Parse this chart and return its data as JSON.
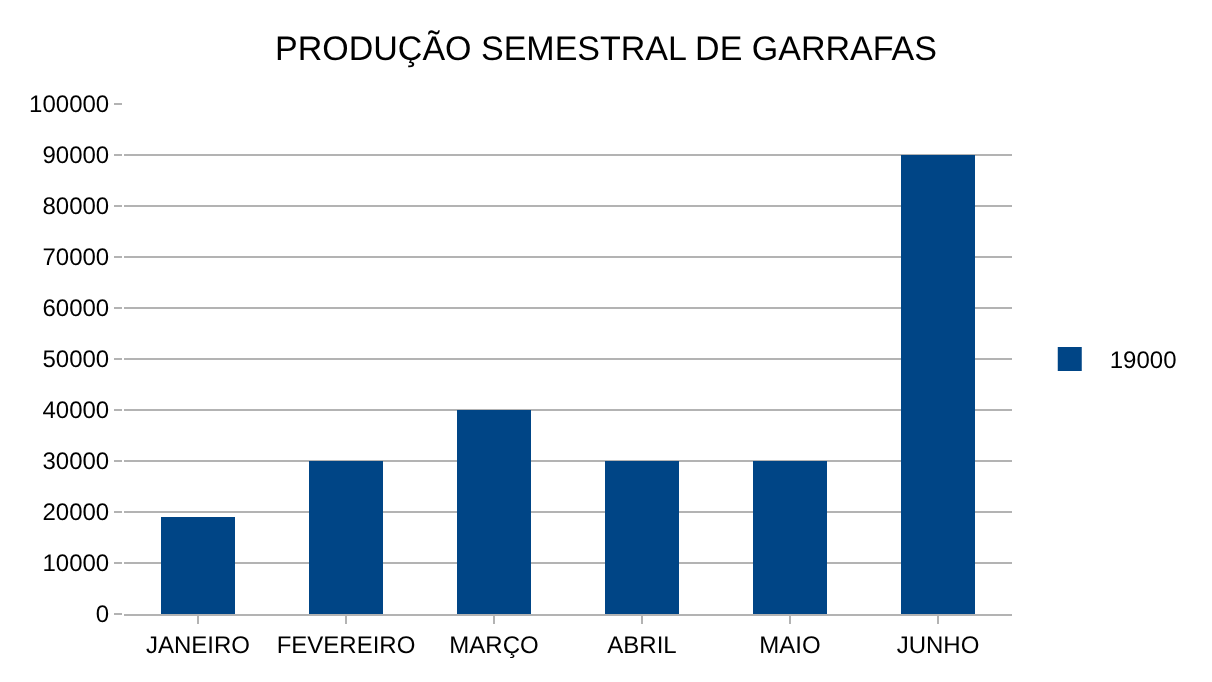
{
  "chart_data": {
    "type": "bar",
    "title": "PRODUÇÃO SEMESTRAL DE GARRAFAS",
    "categories": [
      "JANEIRO",
      "FEVEREIRO",
      "MARÇO",
      "ABRIL",
      "MAIO",
      "JUNHO"
    ],
    "series": [
      {
        "name": "19000",
        "color": "#004586",
        "values": [
          19000,
          30000,
          40000,
          30000,
          30000,
          90000
        ]
      }
    ],
    "ylim": [
      0,
      100000
    ],
    "yticks": [
      0,
      10000,
      20000,
      30000,
      40000,
      50000,
      60000,
      70000,
      80000,
      90000,
      100000
    ],
    "grid": "y",
    "legend": "right"
  }
}
